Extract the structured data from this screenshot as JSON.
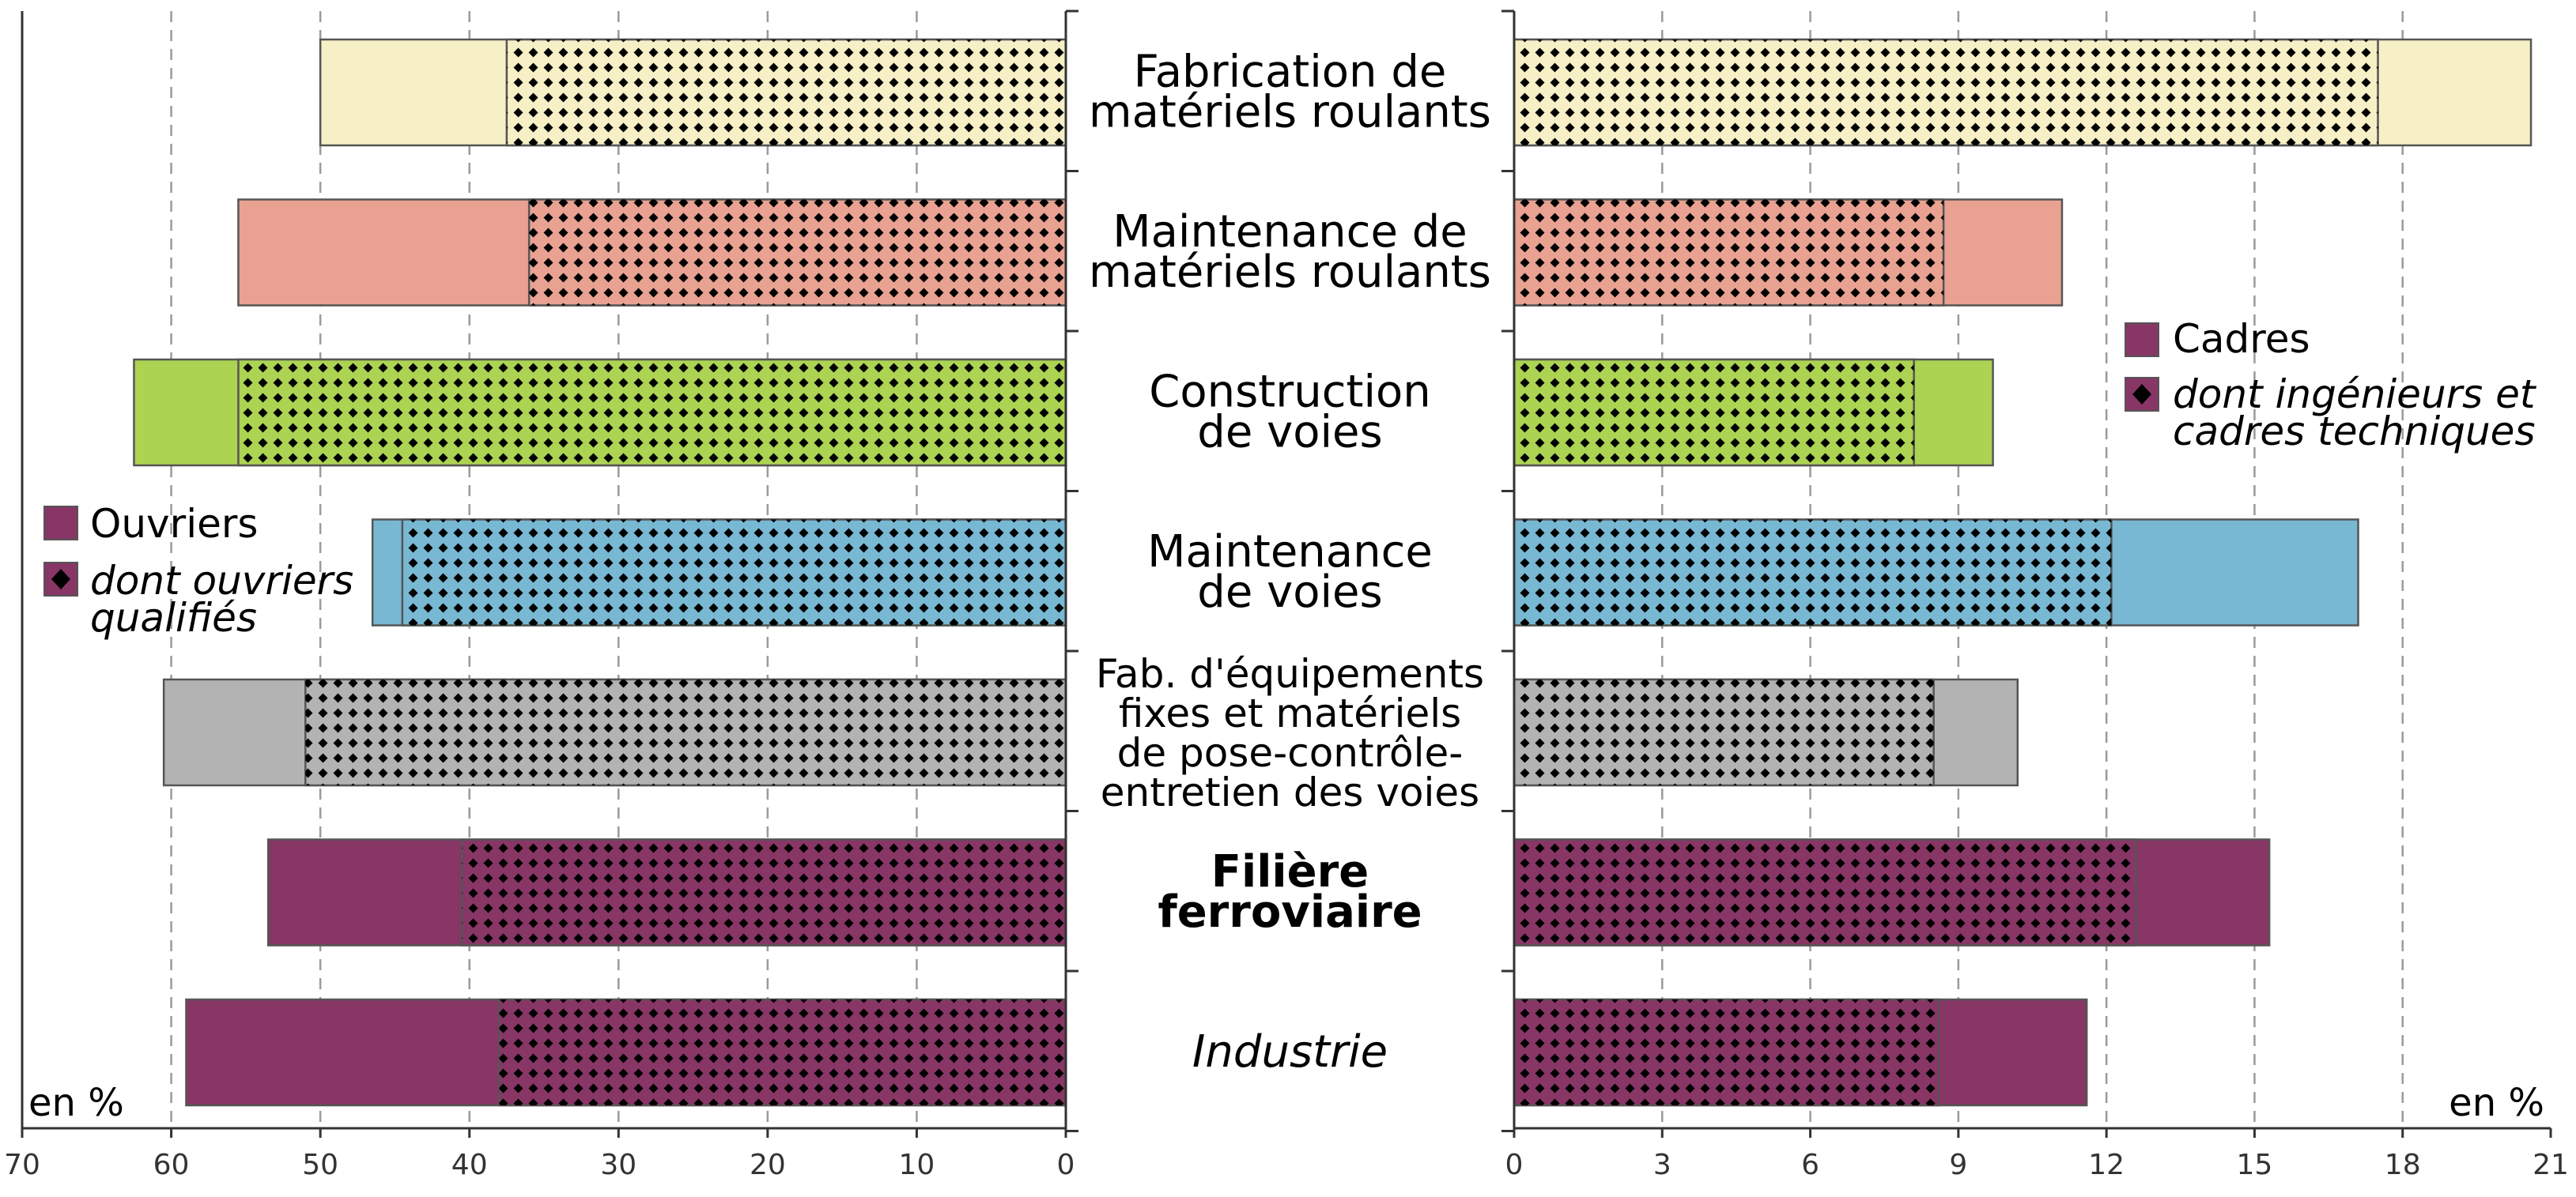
{
  "chart_data": [
    {
      "type": "bar",
      "orientation": "horizontal",
      "axis_direction": "reversed",
      "xlim": [
        0,
        70
      ],
      "ticks": [
        "70",
        "60",
        "50",
        "40",
        "30",
        "20",
        "10",
        "0"
      ],
      "unit": "en %",
      "grid": true,
      "legend_position": "left",
      "categories": [
        "Fabrication de matériels roulants",
        "Maintenance de matériels roulants",
        "Construction de voies",
        "Maintenance de voies",
        "Fab. d'équipements fixes et matériels de pose-contrôle-entretien des voies",
        "Filière ferroviaire",
        "Industrie"
      ],
      "series": [
        {
          "name": "Ouvriers",
          "values": [
            50,
            55.5,
            62.5,
            46.5,
            60.5,
            53.5,
            59
          ]
        },
        {
          "name": "dont ouvriers qualifiés",
          "values": [
            37.5,
            36,
            55.5,
            44.5,
            51,
            40.5,
            38
          ]
        }
      ]
    },
    {
      "type": "bar",
      "orientation": "horizontal",
      "xlim": [
        0,
        21
      ],
      "ticks": [
        "0",
        "3",
        "6",
        "9",
        "12",
        "15",
        "18",
        "21"
      ],
      "unit": "en %",
      "grid": true,
      "legend_position": "top-right",
      "categories": [
        "Fabrication de matériels roulants",
        "Maintenance de matériels roulants",
        "Construction de voies",
        "Maintenance de voies",
        "Fab. d'équipements fixes et matériels de pose-contrôle-entretien des voies",
        "Filière ferroviaire",
        "Industrie"
      ],
      "series": [
        {
          "name": "Cadres",
          "values": [
            20.6,
            11.1,
            9.7,
            17.1,
            10.2,
            15.3,
            11.6
          ]
        },
        {
          "name": "dont ingénieurs et cadres techniques",
          "values": [
            17.5,
            8.7,
            8.1,
            12.1,
            8.5,
            12.6,
            8.6
          ]
        }
      ]
    }
  ],
  "center_labels": [
    {
      "lines": [
        "Fabrication de",
        "matériels roulants"
      ],
      "style": "normal"
    },
    {
      "lines": [
        "Maintenance de",
        "matériels roulants"
      ],
      "style": "normal"
    },
    {
      "lines": [
        "Construction",
        "de voies"
      ],
      "style": "normal"
    },
    {
      "lines": [
        "Maintenance",
        "de voies"
      ],
      "style": "normal"
    },
    {
      "lines": [
        "Fab. d'équipements",
        "fixes et matériels",
        "de pose-contrôle-",
        "entretien des voies"
      ],
      "style": "small"
    },
    {
      "lines": [
        "Filière",
        "ferroviaire"
      ],
      "style": "bold"
    },
    {
      "lines": [
        "Industrie"
      ],
      "style": "italic"
    }
  ],
  "colors": [
    "#f7efc6",
    "#e9a292",
    "#acd352",
    "#78b8d3",
    "#b3b3b3",
    "#883666",
    "#883666"
  ],
  "legend_left": {
    "swatch_color": "#883666",
    "items": [
      "Ouvriers",
      "dont ouvriers",
      "qualifiés"
    ]
  },
  "legend_right": {
    "swatch_color": "#883666",
    "items": [
      "Cadres",
      "dont ingénieurs et",
      "cadres techniques"
    ]
  }
}
